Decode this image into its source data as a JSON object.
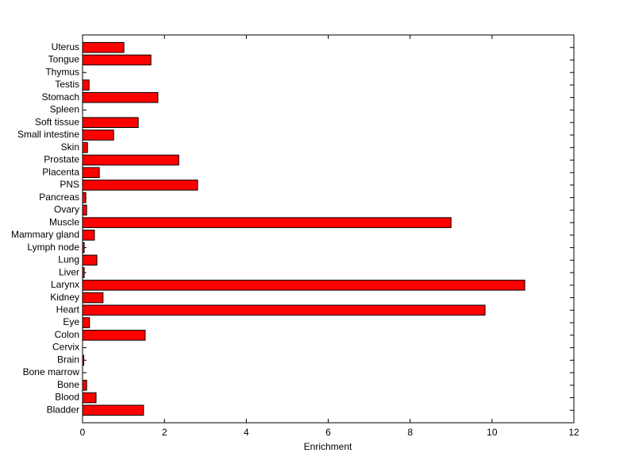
{
  "chart_data": {
    "type": "barh",
    "xlabel": "Enrichment",
    "categories": [
      "Bladder",
      "Blood",
      "Bone",
      "Bone marrow",
      "Brain",
      "Cervix",
      "Colon",
      "Eye",
      "Heart",
      "Kidney",
      "Larynx",
      "Liver",
      "Lung",
      "Lymph node",
      "Mammary gland",
      "Muscle",
      "Ovary",
      "Pancreas",
      "PNS",
      "Placenta",
      "Prostate",
      "Skin",
      "Small intestine",
      "Soft tissue",
      "Spleen",
      "Stomach",
      "Testis",
      "Thymus",
      "Tongue",
      "Uterus"
    ],
    "values": [
      1.49,
      0.33,
      0.1,
      0,
      0.03,
      0,
      1.53,
      0.17,
      9.83,
      0.5,
      10.8,
      0.04,
      0.35,
      0.04,
      0.29,
      9.0,
      0.1,
      0.08,
      2.81,
      0.41,
      2.35,
      0.12,
      0.76,
      1.36,
      0,
      1.84,
      0.16,
      0,
      1.67,
      1.01
    ],
    "color": "#ff0000",
    "xlim": [
      0,
      12
    ],
    "xticks": [
      0,
      2,
      4,
      6,
      8,
      10,
      12
    ]
  }
}
